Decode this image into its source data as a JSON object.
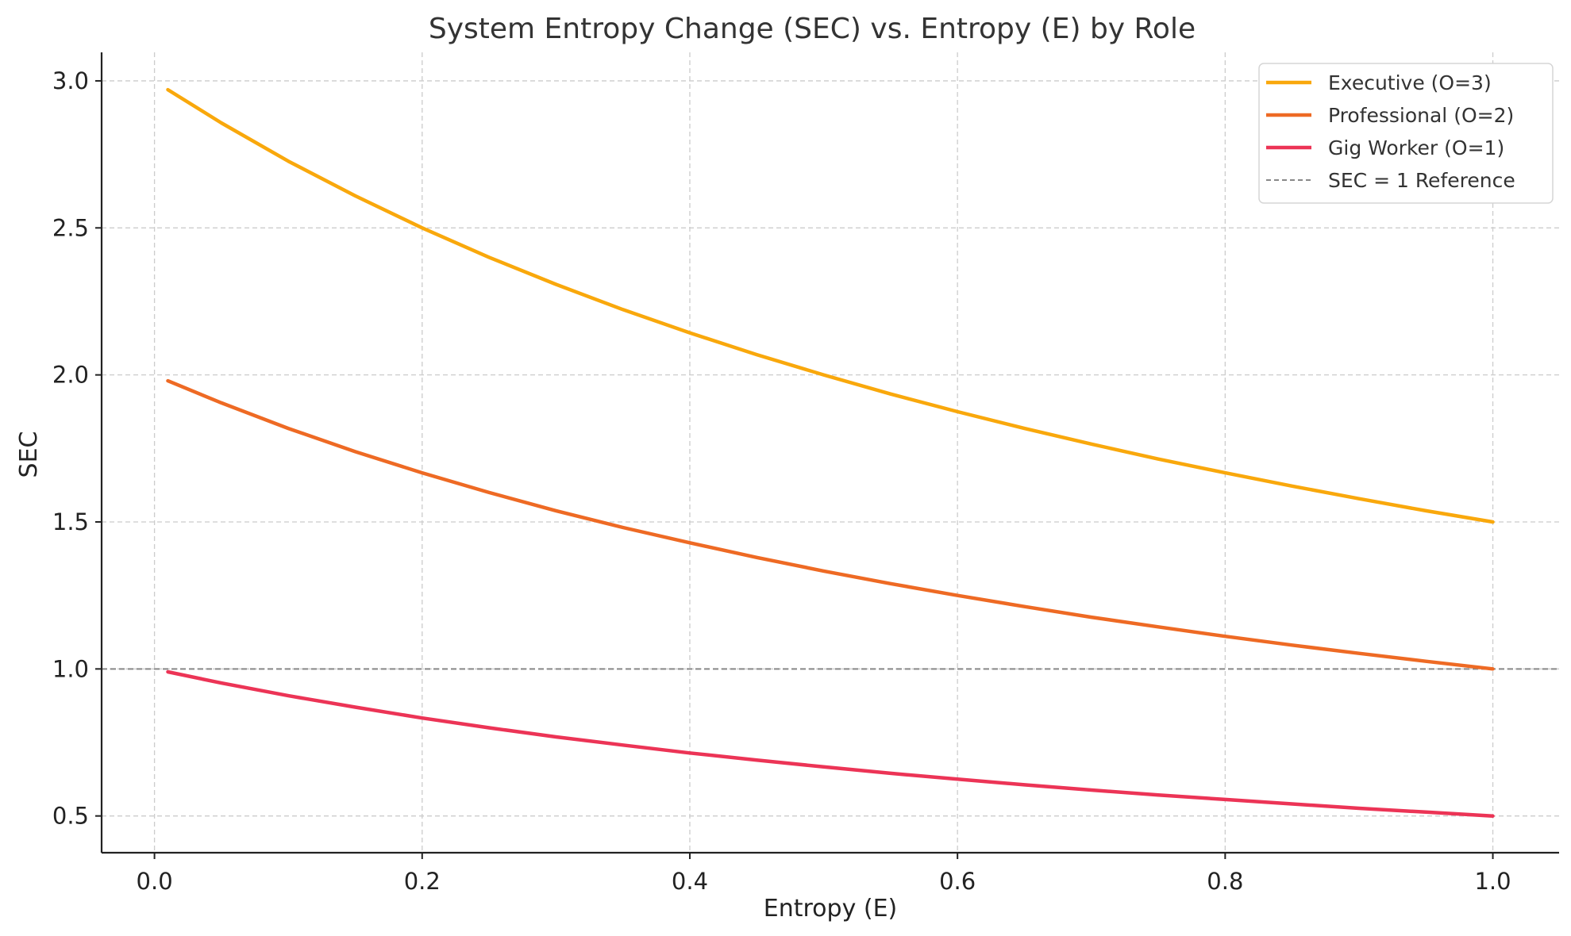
{
  "chart_data": {
    "type": "line",
    "title": "System Entropy Change (SEC) vs. Entropy (E) by Role",
    "xlabel": "Entropy (E)",
    "ylabel": "SEC",
    "xlim": [
      -0.0395,
      1.0495
    ],
    "ylim": [
      0.375,
      3.097
    ],
    "xticks": [
      0.0,
      0.2,
      0.4,
      0.6,
      0.8,
      1.0
    ],
    "xtick_labels": [
      "0.0",
      "0.2",
      "0.4",
      "0.6",
      "0.8",
      "1.0"
    ],
    "yticks": [
      0.5,
      1.0,
      1.5,
      2.0,
      2.5,
      3.0
    ],
    "ytick_labels": [
      "0.5",
      "1.0",
      "1.5",
      "2.0",
      "2.5",
      "3.0"
    ],
    "grid": true,
    "legend_position": "top-right",
    "x": [
      0.01,
      0.05,
      0.1,
      0.15,
      0.2,
      0.25,
      0.3,
      0.35,
      0.4,
      0.45,
      0.5,
      0.55,
      0.6,
      0.65,
      0.7,
      0.75,
      0.8,
      0.85,
      0.9,
      0.95,
      1.0
    ],
    "series": [
      {
        "name": "Executive (O=3)",
        "color": "#f9a80c",
        "style": "solid",
        "values": [
          2.97,
          2.857,
          2.727,
          2.609,
          2.5,
          2.4,
          2.308,
          2.222,
          2.143,
          2.069,
          2.0,
          1.935,
          1.875,
          1.818,
          1.765,
          1.714,
          1.667,
          1.622,
          1.579,
          1.538,
          1.5
        ]
      },
      {
        "name": "Professional (O=2)",
        "color": "#ee6a24",
        "style": "solid",
        "values": [
          1.98,
          1.905,
          1.818,
          1.739,
          1.667,
          1.6,
          1.538,
          1.481,
          1.429,
          1.379,
          1.333,
          1.29,
          1.25,
          1.212,
          1.176,
          1.143,
          1.111,
          1.081,
          1.053,
          1.026,
          1.0
        ]
      },
      {
        "name": "Gig Worker (O=1)",
        "color": "#ec3456",
        "style": "solid",
        "values": [
          0.99,
          0.952,
          0.909,
          0.87,
          0.833,
          0.8,
          0.769,
          0.741,
          0.714,
          0.69,
          0.667,
          0.645,
          0.625,
          0.606,
          0.588,
          0.571,
          0.556,
          0.541,
          0.526,
          0.513,
          0.5
        ]
      }
    ],
    "reference_line": {
      "name": "SEC = 1 Reference",
      "y": 1.0,
      "color": "#888888",
      "style": "dashed"
    }
  }
}
